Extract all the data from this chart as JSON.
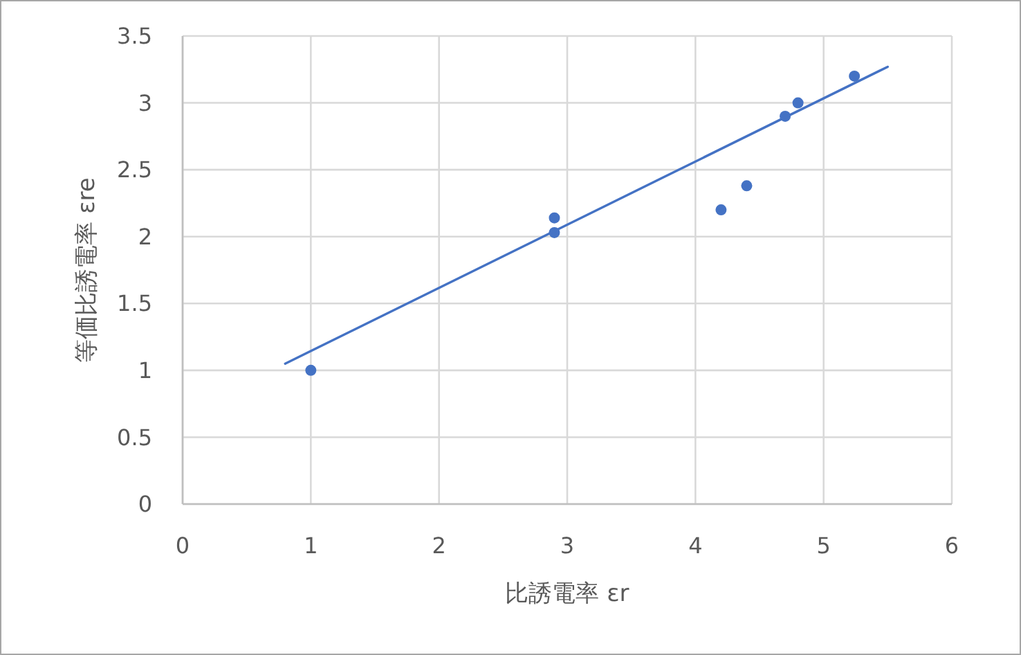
{
  "chart_data": {
    "type": "scatter",
    "xlabel": "比誘電率 εr",
    "ylabel": "等価比誘電率 εre",
    "xlim": [
      0,
      6
    ],
    "xticks": [
      0,
      1,
      2,
      3,
      4,
      5,
      6
    ],
    "ylim": [
      0,
      3.5
    ],
    "yticks": [
      0,
      0.5,
      1,
      1.5,
      2,
      2.5,
      3,
      3.5
    ],
    "grid": true,
    "series": [
      {
        "color": "#4472c4",
        "marker": "circle",
        "x": [
          1,
          2.9,
          2.9,
          4.2,
          4.4,
          4.7,
          4.8,
          5.24
        ],
        "values": [
          1,
          2.14,
          2.03,
          2.2,
          2.38,
          2.9,
          3.0,
          3.2
        ]
      },
      {
        "type": "line",
        "color": "#4472c4",
        "marker": "none",
        "line_style": "solid",
        "x": [
          0.8,
          5.5
        ],
        "values": [
          1.05,
          3.27
        ]
      }
    ]
  }
}
